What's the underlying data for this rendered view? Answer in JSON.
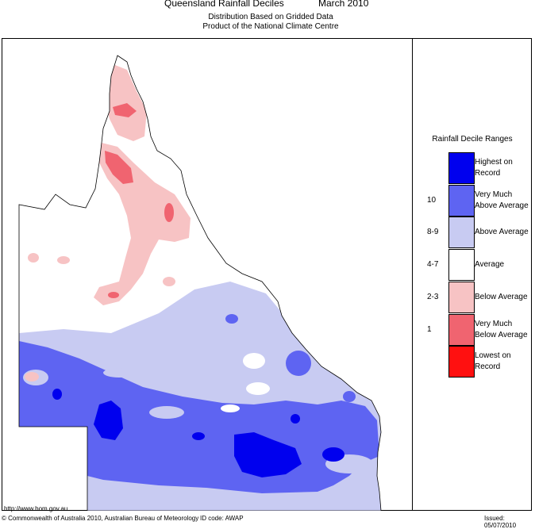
{
  "header": {
    "title": "Queensland Rainfall Deciles",
    "period": "March 2010",
    "subtitle_1": "Distribution Based on Gridded Data",
    "subtitle_2": "Product of the National Climate Centre"
  },
  "legend": {
    "title": "Rainfall Decile Ranges",
    "items": [
      {
        "code": "",
        "label_1": "Highest on",
        "label_2": "Record",
        "color": "#0000ee"
      },
      {
        "code": "10",
        "label_1": "Very Much",
        "label_2": "Above Average",
        "color": "#5e64f2"
      },
      {
        "code": "8-9",
        "label_1": "Above Average",
        "label_2": "",
        "color": "#c8cbf2"
      },
      {
        "code": "4-7",
        "label_1": "Average",
        "label_2": "",
        "color": "#ffffff"
      },
      {
        "code": "2-3",
        "label_1": "Below Average",
        "label_2": "",
        "color": "#f7c3c4"
      },
      {
        "code": "1",
        "label_1": "Very Much",
        "label_2": "Below Average",
        "color": "#f06470"
      },
      {
        "code": "",
        "label_1": "Lowest on",
        "label_2": "Record",
        "color": "#ff1010"
      }
    ]
  },
  "footer": {
    "url": "http://www.bom.gov.au",
    "copyright": "© Commonwealth of Australia 2010, Australian Bureau of Meteorology",
    "id_code": "ID code: AWAP",
    "issued": "Issued: 05/07/2010"
  }
}
